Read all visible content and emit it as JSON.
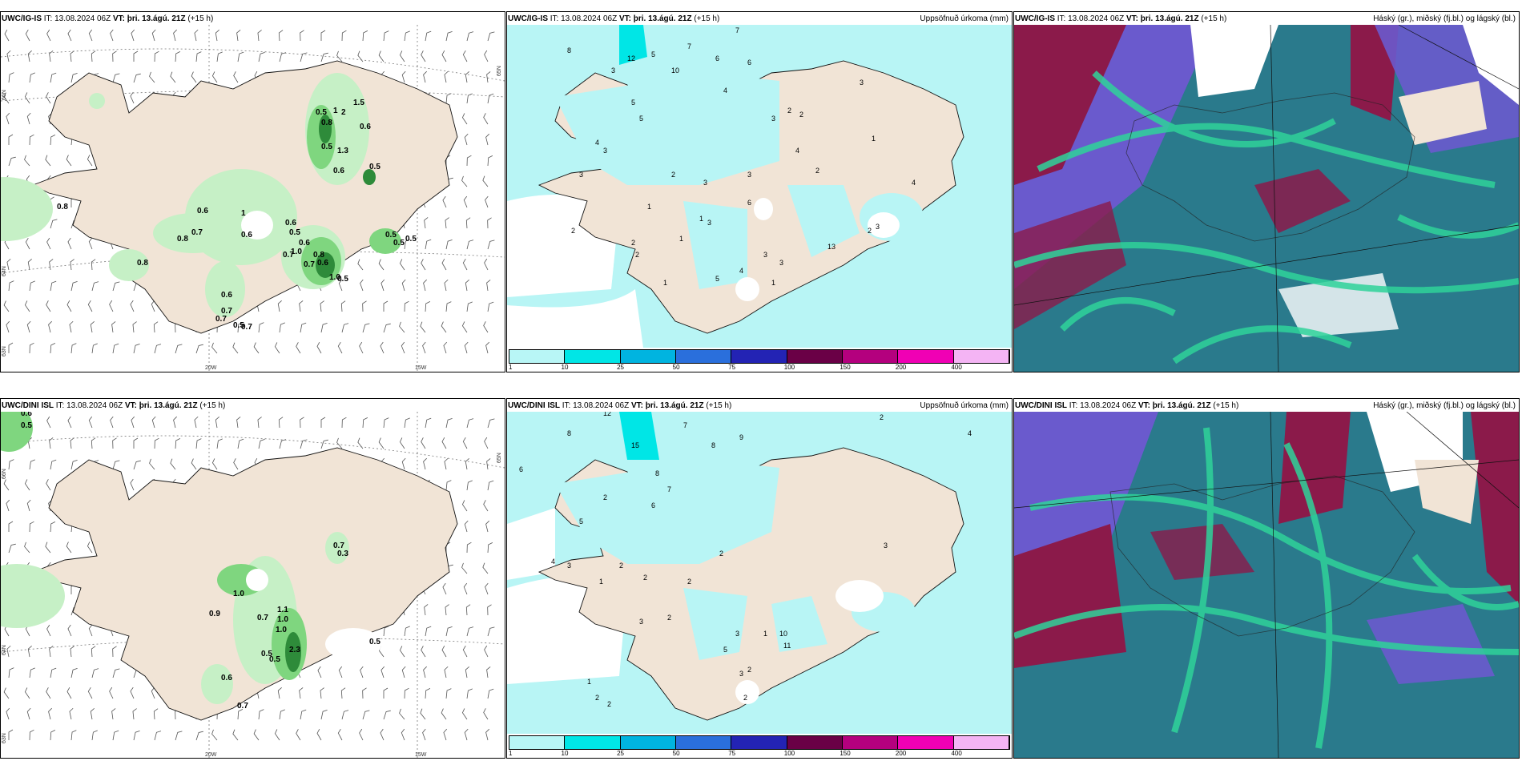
{
  "panels": [
    {
      "model": "UWC/IG-IS",
      "it_label": "IT:",
      "it": "13.08.2024 06Z",
      "vt_label": "VT:",
      "vt": "þri. 13.ágú. 21Z",
      "lead": "(+15 h)",
      "right": ""
    },
    {
      "model": "UWC/IG-IS",
      "it_label": "IT:",
      "it": "13.08.2024 06Z",
      "vt_label": "VT:",
      "vt": "þri. 13.ágú. 21Z",
      "lead": "(+15 h)",
      "right": "Uppsöfnuð úrkoma (mm)"
    },
    {
      "model": "UWC/IG-IS",
      "it_label": "IT:",
      "it": "13.08.2024 06Z",
      "vt_label": "VT:",
      "vt": "þri. 13.ágú. 21Z",
      "lead": "(+15 h)",
      "right": "Háský (gr.), miðský (fj.bl.) og lágský (bl.)"
    },
    {
      "model": "UWC/DINI ISL",
      "it_label": "IT:",
      "it": "13.08.2024 06Z",
      "vt_label": "VT:",
      "vt": "þri. 13.ágú. 21Z",
      "lead": "(+15 h)",
      "right": ""
    },
    {
      "model": "UWC/DINI ISL",
      "it_label": "IT:",
      "it": "13.08.2024 06Z",
      "vt_label": "VT:",
      "vt": "þri. 13.ágú. 21Z",
      "lead": "(+15 h)",
      "right": "Uppsöfnuð úrkoma (mm)"
    },
    {
      "model": "UWC/DINI ISL",
      "it_label": "IT:",
      "it": "13.08.2024 06Z",
      "vt_label": "VT:",
      "vt": "þri. 13.ágú. 21Z",
      "lead": "(+15 h)",
      "right": "Háský (gr.), miðský (fj.bl.) og lágský (bl.)"
    }
  ],
  "precip_scale": {
    "ticks": [
      "1",
      "10",
      "25",
      "50",
      "75",
      "100",
      "150",
      "200",
      "400"
    ],
    "colors": [
      "#b8f6f6",
      "#00e6e6",
      "#00b4e0",
      "#2a6fdc",
      "#2323b4",
      "#6a0046",
      "#b4007e",
      "#f000b4",
      "#f4b4f4"
    ]
  },
  "axes": {
    "top": {
      "lon": [
        "20W",
        "15W"
      ],
      "lat": [
        "66N",
        "64N",
        "65N",
        "63N"
      ]
    },
    "bottom": {
      "lon": [
        "20W",
        "15W"
      ],
      "lat": [
        "66N",
        "64N",
        "65N",
        "63N"
      ]
    }
  },
  "colors": {
    "land": "#f1e4d6",
    "sea": "#ffffff",
    "precip_light": "#b8f5f5",
    "ws_light": "#c6f0c6",
    "ws_mid": "#7fd67f",
    "ws_dark": "#2e8b3a",
    "high_cloud": "#8b1a4a",
    "mid_cloud": "#6a5acd",
    "low_cloud": "#2a7a8c",
    "green_cloud": "#2fd39a"
  },
  "wind_values_top": [
    "1.5",
    "0.5",
    "1",
    "2",
    "0.8",
    "0.6",
    "1.3",
    "0.5",
    "0.5",
    "0.6",
    "0.8",
    "0.6",
    "0.7",
    "0.8",
    "0.6",
    "1",
    "0.6",
    "0.5",
    "0.6",
    "1.0",
    "0.7",
    "0.8",
    "0.7",
    "0.6",
    "1.0",
    "0.5",
    "0.5",
    "0.5",
    "0.5",
    "0.8",
    "0.6",
    "0.7",
    "0.7",
    "0.7",
    "0.5"
  ],
  "wind_values_bottom": [
    "0.6",
    "0.5",
    "0.7",
    "0.3",
    "1.0",
    "0.9",
    "0.7",
    "1.1",
    "1.0",
    "1.0",
    "0.5",
    "0.5",
    "2.3",
    "0.5",
    "0.6",
    "0.7"
  ],
  "precip_values_top": [
    "7",
    "8",
    "7",
    "6",
    "6",
    "5",
    "10",
    "12",
    "4",
    "3",
    "5",
    "5",
    "4",
    "3",
    "3",
    "2",
    "1",
    "2",
    "3",
    "6",
    "4",
    "2",
    "3",
    "1",
    "13",
    "1",
    "3",
    "3",
    "4",
    "5",
    "1",
    "2",
    "2",
    "1",
    "1",
    "3",
    "3",
    "3",
    "2",
    "2",
    "4",
    "2",
    "3"
  ],
  "precip_values_bottom": [
    "12",
    "6",
    "7",
    "8",
    "8",
    "15",
    "9",
    "2",
    "4",
    "2",
    "5",
    "6",
    "7",
    "8",
    "4",
    "3",
    "2",
    "2",
    "1",
    "3",
    "2",
    "2",
    "2",
    "10",
    "11",
    "3",
    "3",
    "2",
    "3",
    "1",
    "5",
    "2",
    "1",
    "2",
    "2"
  ]
}
